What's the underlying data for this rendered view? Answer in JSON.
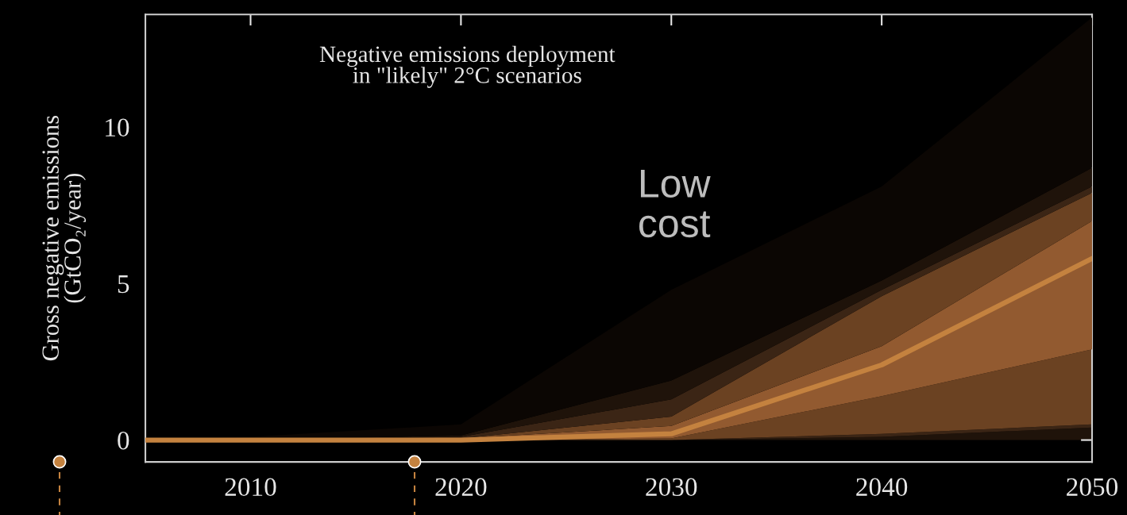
{
  "chart_data": {
    "type": "area",
    "stacked": true,
    "title": "Negative emissions deployment\nin \"likely\" 2°C scenarios",
    "ylabel": "Gross negative emissions\n(GtCO₂/year)",
    "annotations": [
      "Low\ncost"
    ],
    "x": [
      2005,
      2010,
      2020,
      2030,
      2040,
      2050
    ],
    "series": [
      {
        "color": "#1f130a",
        "values": [
          0,
          0,
          0,
          0,
          0.1,
          0.4
        ]
      },
      {
        "color": "#3b2515",
        "values": [
          0,
          0,
          0,
          0,
          0.1,
          0.1
        ]
      },
      {
        "color": "#6b4222",
        "values": [
          0,
          0,
          0,
          0.05,
          1.2,
          2.4
        ]
      },
      {
        "color": "#925a30",
        "values": [
          0,
          0,
          0.05,
          0.4,
          1.6,
          4.1
        ]
      },
      {
        "color": "#6b4222",
        "values": [
          0,
          0,
          0,
          0.3,
          1.6,
          0.9
        ]
      },
      {
        "color": "#3b2515",
        "values": [
          0,
          0,
          0.05,
          0.55,
          0.2,
          0.2
        ]
      },
      {
        "color": "#1f130a",
        "values": [
          0,
          0,
          0.05,
          0.6,
          0.3,
          0.6
        ]
      },
      {
        "color": "#0b0603",
        "values": [
          0,
          0.1,
          0.35,
          2.9,
          3.0,
          4.8
        ]
      },
      {
        "type": "line",
        "color": "#c4823f",
        "values": [
          0,
          0,
          0,
          0.2,
          2.4,
          5.8
        ]
      }
    ],
    "xlim": [
      2005,
      2050
    ],
    "xticks": [
      2010,
      2020,
      2030,
      2040,
      2050
    ],
    "ylim": [
      -0.7,
      13.6
    ],
    "yticks": [
      0,
      5,
      10
    ],
    "grid": false,
    "legend": false
  }
}
